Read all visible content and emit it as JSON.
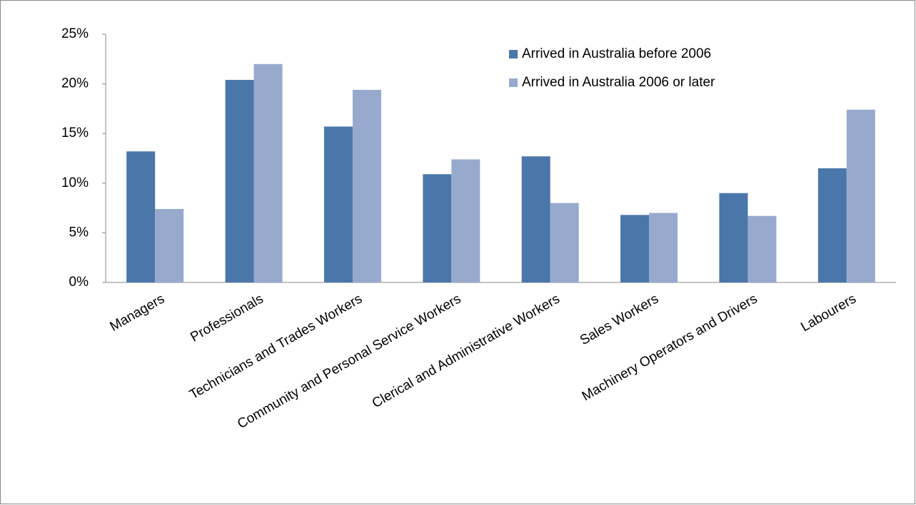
{
  "chart_data": {
    "type": "bar",
    "categories": [
      "Managers",
      "Professionals",
      "Technicians and Trades Workers",
      "Community and Personal Service Workers",
      "Clerical and Administrative Workers",
      "Sales Workers",
      "Machinery Operators and Drivers",
      "Labourers"
    ],
    "series": [
      {
        "name": "Arrived in Australia before 2006",
        "color": "#4a76aa",
        "values": [
          13.2,
          20.4,
          15.7,
          10.9,
          12.7,
          6.8,
          9.0,
          11.5
        ]
      },
      {
        "name": "Arrived in Australia 2006 or later",
        "color": "#97aace",
        "values": [
          7.4,
          22.0,
          19.4,
          12.4,
          8.0,
          7.0,
          6.7,
          17.4
        ]
      }
    ],
    "ylim": [
      0,
      25
    ],
    "yticks": [
      {
        "value": 0,
        "label": "0%"
      },
      {
        "value": 5,
        "label": "5%"
      },
      {
        "value": 10,
        "label": "10%"
      },
      {
        "value": 15,
        "label": "15%"
      },
      {
        "value": 20,
        "label": "20%"
      },
      {
        "value": 25,
        "label": "25%"
      }
    ]
  }
}
